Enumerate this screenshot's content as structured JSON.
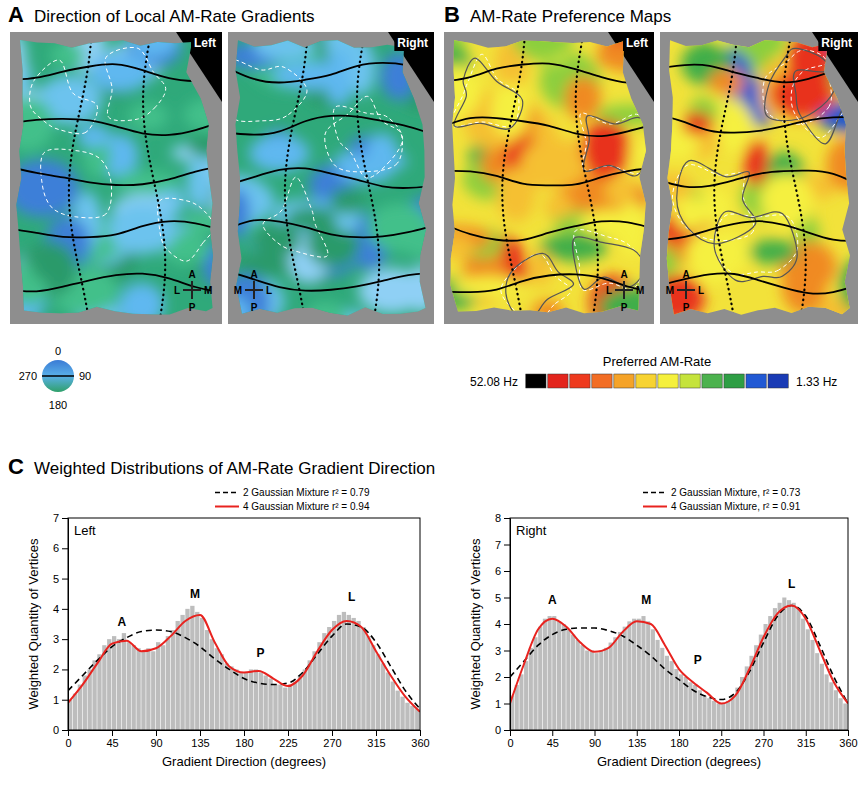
{
  "panel_a": {
    "letter": "A",
    "title": "Direction of Local AM-Rate Gradients",
    "maps": [
      {
        "label": "Left",
        "compass": {
          "up": "A",
          "down": "P",
          "left": "L",
          "right": "M"
        }
      },
      {
        "label": "Right",
        "compass": {
          "up": "A",
          "down": "P",
          "left": "M",
          "right": "L"
        }
      }
    ],
    "color_wheel": {
      "ticks": [
        0,
        90,
        180,
        270
      ]
    }
  },
  "panel_b": {
    "letter": "B",
    "title": "AM-Rate Preference Maps",
    "maps": [
      {
        "label": "Left",
        "compass": {
          "up": "A",
          "down": "P",
          "left": "L",
          "right": "M"
        }
      },
      {
        "label": "Right",
        "compass": {
          "up": "A",
          "down": "P",
          "left": "M",
          "right": "L"
        }
      }
    ],
    "colorbar": {
      "title": "Preferred AM-Rate",
      "range": [
        52.08,
        1.33
      ],
      "ticks": [
        {
          "value": 52.08,
          "label": "52.08 Hz"
        },
        {
          "value": 1.33,
          "label": "1.33 Hz"
        }
      ],
      "colors": [
        "#000000",
        "#e3241c",
        "#ee3a1e",
        "#f26d24",
        "#f5a328",
        "#f7d332",
        "#f5f03c",
        "#c5e33c",
        "#4cb24e",
        "#2e9e44",
        "#2159d4",
        "#1a3bb5"
      ]
    }
  },
  "panel_c": {
    "letter": "C",
    "title": "Weighted Distributions of AM-Rate Gradient Direction"
  },
  "chart_data": [
    {
      "type": "histogram",
      "title": "Left",
      "xlabel": "Gradient Direction (degrees)",
      "ylabel": "Weighted Quantity of Vertices",
      "color": "#bdbdbd",
      "bins": [
        0,
        5,
        10,
        15,
        20,
        25,
        30,
        35,
        40,
        45,
        50,
        55,
        60,
        65,
        70,
        75,
        80,
        85,
        90,
        95,
        100,
        105,
        110,
        115,
        120,
        125,
        130,
        135,
        140,
        145,
        150,
        155,
        160,
        165,
        170,
        175,
        180,
        185,
        190,
        195,
        200,
        205,
        210,
        215,
        220,
        225,
        230,
        235,
        240,
        245,
        250,
        255,
        260,
        265,
        270,
        275,
        280,
        285,
        290,
        295,
        300,
        305,
        310,
        315,
        320,
        325,
        330,
        335,
        340,
        345,
        350,
        355,
        360
      ],
      "values": [
        1.0,
        1.2,
        1.5,
        1.8,
        2.0,
        2.3,
        2.5,
        2.8,
        3.0,
        3.1,
        3.0,
        3.2,
        2.9,
        2.8,
        2.7,
        2.6,
        2.7,
        2.6,
        2.9,
        2.8,
        3.1,
        3.3,
        3.6,
        3.8,
        4.0,
        4.1,
        3.9,
        3.7,
        3.3,
        3.0,
        2.7,
        2.5,
        2.2,
        2.1,
        2.0,
        1.9,
        1.9,
        2.0,
        2.0,
        1.9,
        1.8,
        1.7,
        1.5,
        1.5,
        1.4,
        1.5,
        1.6,
        1.8,
        2.0,
        2.3,
        2.6,
        2.9,
        3.2,
        3.4,
        3.6,
        3.8,
        3.9,
        3.8,
        3.7,
        3.6,
        3.4,
        3.1,
        2.8,
        2.5,
        2.2,
        1.9,
        1.6,
        1.3,
        1.1,
        0.9,
        0.8,
        0.7
      ],
      "series": [
        {
          "name": "2 Gaussian Mixture r² = 0.79",
          "type": "line",
          "color": "#000000",
          "line_style": "dashed",
          "x": [
            0,
            15,
            30,
            45,
            60,
            75,
            90,
            105,
            120,
            135,
            150,
            165,
            180,
            195,
            210,
            225,
            240,
            255,
            270,
            285,
            300,
            315,
            330,
            345,
            360
          ],
          "values": [
            1.3,
            1.8,
            2.3,
            2.75,
            3.05,
            3.25,
            3.3,
            3.25,
            3.05,
            2.75,
            2.35,
            2.0,
            1.7,
            1.55,
            1.5,
            1.55,
            1.9,
            2.5,
            3.1,
            3.5,
            3.4,
            2.9,
            2.1,
            1.3,
            0.7
          ]
        },
        {
          "name": "4 Gaussian Mixture r² = 0.94",
          "type": "line",
          "color": "#e8231f",
          "line_style": "solid",
          "x": [
            0,
            15,
            30,
            45,
            60,
            75,
            90,
            105,
            120,
            135,
            150,
            165,
            180,
            195,
            210,
            225,
            240,
            255,
            270,
            285,
            300,
            315,
            330,
            345,
            360
          ],
          "values": [
            0.9,
            1.5,
            2.2,
            2.85,
            2.95,
            2.6,
            2.7,
            3.1,
            3.6,
            3.8,
            2.9,
            2.1,
            1.9,
            1.95,
            1.7,
            1.45,
            1.8,
            2.6,
            3.3,
            3.6,
            3.4,
            2.6,
            1.8,
            1.1,
            0.6
          ]
        }
      ],
      "annotations": [
        {
          "text": "A",
          "x": 55,
          "y": 3.45
        },
        {
          "text": "M",
          "x": 130,
          "y": 4.35
        },
        {
          "text": "P",
          "x": 197,
          "y": 2.4
        },
        {
          "text": "L",
          "x": 290,
          "y": 4.25
        }
      ],
      "xlim": [
        0,
        360
      ],
      "xticks": [
        0,
        45,
        90,
        135,
        180,
        225,
        270,
        315,
        360
      ],
      "ylim": [
        0,
        7
      ],
      "yticks": [
        0,
        1,
        2,
        3,
        4,
        5,
        6,
        7
      ],
      "legend": "top"
    },
    {
      "type": "histogram",
      "title": "Right",
      "xlabel": "Gradient Direction (degrees)",
      "ylabel": "Weighted Quantity of Vertices",
      "color": "#bdbdbd",
      "bins": [
        0,
        5,
        10,
        15,
        20,
        25,
        30,
        35,
        40,
        45,
        50,
        55,
        60,
        65,
        70,
        75,
        80,
        85,
        90,
        95,
        100,
        105,
        110,
        115,
        120,
        125,
        130,
        135,
        140,
        145,
        150,
        155,
        160,
        165,
        170,
        175,
        180,
        185,
        190,
        195,
        200,
        205,
        210,
        215,
        220,
        225,
        230,
        235,
        240,
        245,
        250,
        255,
        260,
        265,
        270,
        275,
        280,
        285,
        290,
        295,
        300,
        305,
        310,
        315,
        320,
        325,
        330,
        335,
        340,
        345,
        350,
        355,
        360
      ],
      "values": [
        1.3,
        1.7,
        2.1,
        2.6,
        3.1,
        3.5,
        3.9,
        4.2,
        4.3,
        4.3,
        4.1,
        4.0,
        3.8,
        3.6,
        3.4,
        3.2,
        3.0,
        3.0,
        2.9,
        3.0,
        3.1,
        3.3,
        3.5,
        3.7,
        3.9,
        4.1,
        4.2,
        4.2,
        4.3,
        4.1,
        3.8,
        3.4,
        3.1,
        2.8,
        2.6,
        2.3,
        2.1,
        2.0,
        1.8,
        1.7,
        1.5,
        1.3,
        1.2,
        1.1,
        1.0,
        1.0,
        1.1,
        1.3,
        1.6,
        2.0,
        2.4,
        2.8,
        3.2,
        3.6,
        4.0,
        4.3,
        4.6,
        4.8,
        5.0,
        4.9,
        4.8,
        4.6,
        4.2,
        3.8,
        3.4,
        2.9,
        2.5,
        2.1,
        1.8,
        1.5,
        1.2,
        1.0
      ],
      "series": [
        {
          "name": "2 Gaussian Mixture, r² = 0.73",
          "type": "line",
          "color": "#000000",
          "line_style": "dashed",
          "x": [
            0,
            15,
            30,
            45,
            60,
            75,
            90,
            105,
            120,
            135,
            150,
            165,
            180,
            195,
            210,
            225,
            240,
            255,
            270,
            285,
            300,
            315,
            330,
            345,
            360
          ],
          "values": [
            2.0,
            2.6,
            3.2,
            3.6,
            3.8,
            3.85,
            3.85,
            3.75,
            3.55,
            3.2,
            2.8,
            2.3,
            1.9,
            1.5,
            1.25,
            1.15,
            1.4,
            2.2,
            3.3,
            4.3,
            4.7,
            4.3,
            3.2,
            2.0,
            1.0
          ]
        },
        {
          "name": "4 Gaussian Mixture, r² = 0.91",
          "type": "line",
          "color": "#e8231f",
          "line_style": "solid",
          "x": [
            0,
            15,
            30,
            45,
            60,
            75,
            90,
            105,
            120,
            135,
            150,
            165,
            180,
            195,
            210,
            225,
            240,
            255,
            270,
            285,
            300,
            315,
            330,
            345,
            360
          ],
          "values": [
            1.0,
            2.5,
            3.8,
            4.2,
            3.9,
            3.3,
            2.95,
            3.1,
            3.7,
            4.1,
            4.0,
            3.2,
            2.3,
            1.8,
            1.4,
            1.0,
            1.3,
            2.3,
            3.5,
            4.4,
            4.7,
            4.2,
            3.0,
            1.8,
            1.0
          ]
        }
      ],
      "annotations": [
        {
          "text": "A",
          "x": 45,
          "y": 4.75
        },
        {
          "text": "M",
          "x": 145,
          "y": 4.75
        },
        {
          "text": "P",
          "x": 200,
          "y": 2.5
        },
        {
          "text": "L",
          "x": 300,
          "y": 5.35
        }
      ],
      "xlim": [
        0,
        360
      ],
      "xticks": [
        0,
        45,
        90,
        135,
        180,
        225,
        270,
        315,
        360
      ],
      "ylim": [
        0,
        8
      ],
      "yticks": [
        0,
        1,
        2,
        3,
        4,
        5,
        6,
        7,
        8
      ],
      "legend": "top"
    }
  ]
}
